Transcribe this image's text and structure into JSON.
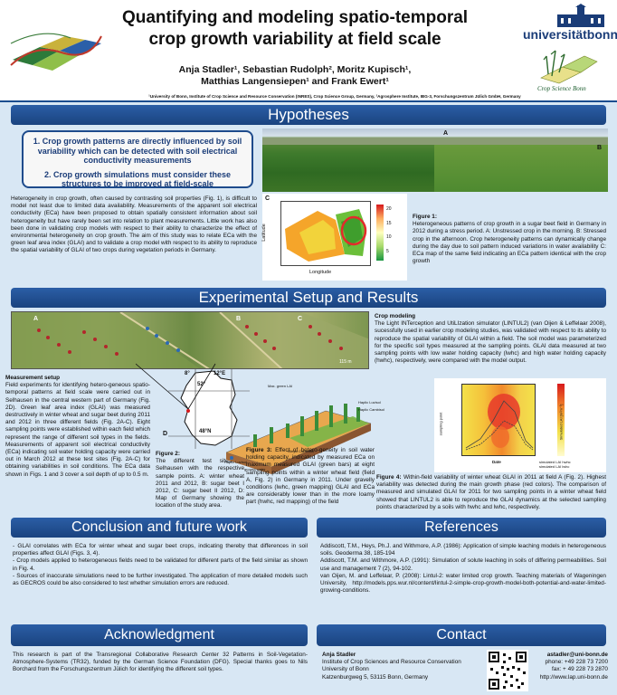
{
  "header": {
    "title_line1": "Quantifying and modeling spatio-temporal",
    "title_line2": "crop growth variability at field scale",
    "authors_line1": "Anja Stadler¹, Sebastian Rudolph², Moritz Kupisch¹,",
    "authors_line2": "Matthias Langensiepen¹ and Frank Ewert¹",
    "affiliations": "¹University of Bonn, Institute of Crop Science and Resource Conservation (INRES), Crop Science Group, Germany, ²Agrosphere Institute, IBG-3, Forschungszentrum Jülich GmbH, Germany",
    "uni_logo": "universitätbonn",
    "crop_logo": "Crop Science Bonn"
  },
  "sections": {
    "hypotheses": "Hypotheses",
    "experimental": "Experimental Setup and Results",
    "conclusion": "Conclusion and future work",
    "references": "References",
    "acknowledgment": "Acknowledgment",
    "contact": "Contact"
  },
  "hypotheses": {
    "h1": "1. Crop growth patterns are directly influenced by soil variability which can be detected with soil electrical conductivity measurements",
    "h2": "2. Crop growth simulations must consider these structures to be improved at field-scale",
    "body": "Heterogeneity in crop growth, often caused by contrasting soil properties (Fig. 1), is difficult to model not least due to limited data availability. Measurements of the apparent soil electrical conductivity (ECa) have been proposed to obtain spatially consistent information about soil heterogeneity but have rarely been set into relation to plant measurements. Little work has also been done in validating crop models with respect to their ability to characterize the effect of environmental heterogeneity on crop growth. The aim of this study was to relate ECa with the green leaf area index (GLAI) and to validate a crop model with respect to its ability to reproduce the spatial variability of GLAI of two crops during vegetation periods in Germany.",
    "fig1_labels": {
      "a": "A",
      "b": "B",
      "c": "C"
    },
    "fig1_axis_x": "Longitude",
    "fig1_axis_y": "Latitude",
    "fig1_scale": [
      "20",
      "15",
      "10",
      "5"
    ],
    "fig1_caption_title": "Figure 1:",
    "fig1_caption": "Heterogeneous patterns of crop growth in a sugar beet field in Germany in 2012 during a stress period. A: Unstressed crop in the morning. B: Stressed crop in the afternoon. Crop heterogeneity patterns can dynamically change during the day due to soil pattern induced variations in water availability C: ECa map of the same field indicating an ECa pattern identical with the crop growth"
  },
  "experimental": {
    "crop_modeling_title": "Crop modeling",
    "crop_modeling_body": "The Light INTerception and UtiLIzation simulator (LINTUL2) (van Oijen & Leffelaar 2008), sucessfully used in earlier crop modeling studies, was validated with respect to its ability to reproduce the spatial variability of GLAI within a field. The soil model was parameterized for the specific soil types measured at the sampling points. GLAI data measured at two sampling points with low water holding capacity (lwhc) and high water holding capacity (hwhc), respectively, were compared with the model output.",
    "measurement_title": "Measurement setup",
    "measurement_body": "Field experiments for identifying hetero-geneous spatio-temporal patterns at field scale were carried out in Selhausen in the central western part of Germany (Fig. 2D). Green leaf area index (GLAI) was measured destructively in winter wheat and sugar beet during 2011 and 2012 in three different fields (Fig. 2A-C). Eight sampling points were established within each field which represent the range of different soil types in the fields. Measurements of apparent soil electrical conductivity (ECa) indicating soil water holding capacity were carried out in March 2012 at these test sites (Fig. 2A-C) for obtaining variabilities in soil conditions. The ECa data shown in Figs. 1 and 3 cover a soil depth of up to 0.5 m.",
    "fig2_title": "Figure 2:",
    "fig2_caption": "The different test sites at Selhausen with the respective sample points. A: winter wheat 2011 and 2012, B: sugar beet I 2012, C: sugar beet II 2012, D: Map of Germany showing the location of the study area.",
    "fig2_labels": {
      "a": "A",
      "b": "B",
      "c": "C",
      "d": "D",
      "lon1": "8°",
      "lon2": "12°E",
      "lat1": "52°",
      "lat2": "48°N",
      "scale": "115 m"
    },
    "fig3_title": "Figure 3:",
    "fig3_caption": "Effect of hetero-geneity in soil water holding capacity, indicated by measured ECa on maximum measured GLAI (green bars) at eight sampling points within a winter wheat field (field A, Fig. 2) in Germany in 2011. Under gravelly conditions (lwhc, green mapping) GLAI and ECa are considerably lower than in the more loamy part (hwhc, red mapping) of the field",
    "fig3_labels": [
      "Max. green LAI",
      "Haplic Luvisol",
      "Haplic Cambisol",
      "Gleyic Cambisol",
      "Haplic Luvisol",
      "ground water"
    ],
    "fig4_title": "Figure 4:",
    "fig4_caption": "Within-field variability of winter wheat GLAI in 2011 at field A (Fig. 2). Highest variability was detected during the main growth phase (red colors). The comparison of measured and simulated GLAI for 2011 for two sampling points in a winter wheat field showed that LINTUL2 is able to reproduce the GLAI dynamics at the selected sampling points characterized by a soils with hwhc and lwhc, respectively.",
    "fig4_axis_x": "Date",
    "fig4_axis_y": "sampling point",
    "fig4_axis_y2": "Simulated LAI [m²m⁻²]",
    "fig4_legend": [
      "simulated LAI hwhc",
      "simulated LAI lwhc"
    ]
  },
  "conclusion": {
    "items": [
      "- GLAI correlates with ECa for winter wheat and sugar beet crops, indicating thereby that differences in soil properties affect GLAI (Figs. 3, 4).",
      "- Crop models applied to heterogeneous fields need to be validated for different parts of the field similar as shown in Fig. 4.",
      "- Sources of inaccurate simulations need to be further investigated. The application of more detailed models such as GECROS could be also considered to test whether simulation errors are reduced."
    ]
  },
  "references": {
    "items": [
      "Addiscott, T.M., Heys, Ph.J. and Withmore, A.P. (1986): Application of simple leaching models in heterogeneous soils. Geoderma 38, 185-194",
      "Addiscott, T.M. and Withmore, A.P. (1991): Simulation of solute leaching in soils of differing permeabilities. Soil use and management 7 (2), 94-102.",
      "van Oijen, M. and Leffelaar, P. (2008): Lintul-2: water limited crop growth. Teaching materials of Wageningen University, http://models.pps.wur.nl/content/lintul-2-simple-crop-growth-model-both-potential-and-water-limited-growing-conditions."
    ]
  },
  "acknowledgment": {
    "body": "This research is part of the Transregional Collaborative Research Center 32 Patterns in Soil-Vegetation-Atmosphere-Systems (TR32), funded by the German Science Foundation (DFG). Special thanks goes to Nils Borchard from the Forschungszentrum Jülich for identifying the different soil types."
  },
  "contact": {
    "name": "Anja Stadler",
    "inst": "Institute of Crop Sciences and Resource Conservation",
    "uni": "University of Bonn",
    "address": "Katzenburgweg 5, 53115 Bonn, Germany",
    "email": "astadler@uni-bonn.de",
    "phone": "phone: +49 228 73 7200",
    "fax": "fax: + 49 228 73 2870",
    "web": "http://www.lap.uni-bonn.de"
  }
}
